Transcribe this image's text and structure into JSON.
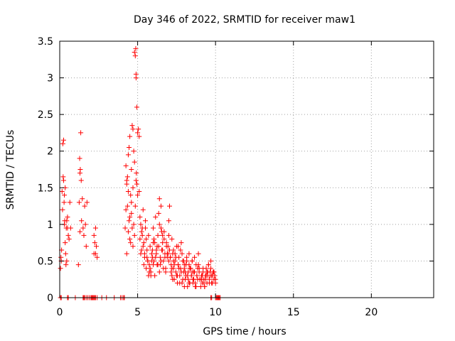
{
  "chart_data": {
    "type": "scatter",
    "title": "Day 346 of 2022, SRMTID for receiver maw1",
    "xlabel": "GPS time / hours",
    "ylabel": "SRMTID / TECUs",
    "xlim": [
      0,
      24
    ],
    "ylim": [
      0,
      3.5
    ],
    "grid": true,
    "marker": "plus",
    "color": "#ff0000",
    "xticks": [
      0,
      5,
      10,
      15,
      20
    ],
    "xtick_labels": [
      "0",
      "5",
      "10",
      "15",
      "20"
    ],
    "yticks": [
      0,
      0.5,
      1,
      1.5,
      2,
      2.5,
      3,
      3.5
    ],
    "ytick_labels": [
      "0",
      "0.5",
      "1",
      "1.5",
      "2",
      "2.5",
      "3",
      "3.5"
    ],
    "series": [
      {
        "name": "maw1",
        "x": [
          0.05,
          0.08,
          0.1,
          0.12,
          0.15,
          0.18,
          0.2,
          0.22,
          0.25,
          0.28,
          0.3,
          0.32,
          0.35,
          0.38,
          0.4,
          0.42,
          0.45,
          0.5,
          0.55,
          0.6,
          0.65,
          0.7,
          0.35,
          0.3,
          0.25,
          0.45,
          0.5,
          1.2,
          1.25,
          1.3,
          1.32,
          1.35,
          1.38,
          1.4,
          1.45,
          1.5,
          1.55,
          1.6,
          1.65,
          1.7,
          1.75,
          1.3,
          1.28,
          2.2,
          2.25,
          2.3,
          2.35,
          2.4,
          2.2,
          2.3,
          4.2,
          4.25,
          4.3,
          4.35,
          4.4,
          4.45,
          4.5,
          4.55,
          4.6,
          4.65,
          4.7,
          4.75,
          4.8,
          4.85,
          4.9,
          4.95,
          5.0,
          5.05,
          5.1,
          4.3,
          4.4,
          4.5,
          4.6,
          4.7,
          4.8,
          4.9,
          5.0,
          4.88,
          4.9,
          4.92,
          4.95,
          4.85,
          4.8,
          4.75,
          4.7,
          4.65,
          4.6,
          4.55,
          4.5,
          4.45,
          4.4,
          4.35,
          4.3,
          4.25,
          5.1,
          5.15,
          5.2,
          5.25,
          5.3,
          5.35,
          5.4,
          5.45,
          5.5,
          5.55,
          5.6,
          5.65,
          5.7,
          5.75,
          5.8,
          5.85,
          5.9,
          5.95,
          6.0,
          5.2,
          5.3,
          5.4,
          5.5,
          5.6,
          5.7,
          5.8,
          5.9,
          6.0,
          5.15,
          5.25,
          5.35,
          5.45,
          5.55,
          5.65,
          5.75,
          5.85,
          5.95,
          6.0,
          6.05,
          6.1,
          6.15,
          6.2,
          6.25,
          6.3,
          6.35,
          6.4,
          6.45,
          6.5,
          6.55,
          6.6,
          6.65,
          6.7,
          6.75,
          6.8,
          6.85,
          6.9,
          6.95,
          7.0,
          6.1,
          6.2,
          6.3,
          6.4,
          6.5,
          6.6,
          6.7,
          6.8,
          6.9,
          7.0,
          6.05,
          6.15,
          6.25,
          6.35,
          6.45,
          6.55,
          6.65,
          6.75,
          6.85,
          6.95,
          6.4,
          6.5,
          6.6,
          7.0,
          7.05,
          7.1,
          7.15,
          7.2,
          7.25,
          7.3,
          7.35,
          7.4,
          7.45,
          7.5,
          7.55,
          7.6,
          7.65,
          7.7,
          7.75,
          7.8,
          7.85,
          7.9,
          7.95,
          8.0,
          7.1,
          7.2,
          7.3,
          7.4,
          7.5,
          7.6,
          7.7,
          7.8,
          7.9,
          8.0,
          7.05,
          7.15,
          7.25,
          7.35,
          7.45,
          7.55,
          7.65,
          7.75,
          7.85,
          7.95,
          7.2,
          7.3,
          7.6,
          8.0,
          8.05,
          8.1,
          8.15,
          8.2,
          8.25,
          8.3,
          8.35,
          8.4,
          8.45,
          8.5,
          8.55,
          8.6,
          8.65,
          8.7,
          8.75,
          8.8,
          8.85,
          8.9,
          8.95,
          9.0,
          8.1,
          8.2,
          8.3,
          8.4,
          8.5,
          8.6,
          8.7,
          8.8,
          8.9,
          8.05,
          8.15,
          8.25,
          8.35,
          8.45,
          8.55,
          8.65,
          8.75,
          8.85,
          8.95,
          8.3,
          8.5,
          9.0,
          9.05,
          9.1,
          9.15,
          9.2,
          9.25,
          9.3,
          9.35,
          9.4,
          9.45,
          9.5,
          9.55,
          9.6,
          9.65,
          9.7,
          9.75,
          9.8,
          9.85,
          9.9,
          9.95,
          10.0,
          9.1,
          9.2,
          9.3,
          9.4,
          9.5,
          9.6,
          9.7,
          9.8,
          9.9,
          10.0,
          9.15,
          9.25,
          9.35,
          9.45,
          9.55,
          9.65,
          9.75,
          9.85,
          0.05,
          0.1,
          0.5,
          0.55,
          1.0,
          1.5,
          1.55,
          1.6,
          1.7,
          1.8,
          1.9,
          2.0,
          2.05,
          2.1,
          2.15,
          2.2,
          2.25,
          2.3,
          2.4,
          2.7,
          3.0,
          3.5,
          3.9,
          4.0,
          4.1,
          4.15,
          9.7,
          9.75,
          10.0,
          10.05,
          10.1,
          10.15,
          10.2,
          10.25,
          10.3
        ],
        "y": [
          0.4,
          0.55,
          0.5,
          0.65,
          1.45,
          1.2,
          2.1,
          1.65,
          1.6,
          1.3,
          1.0,
          1.05,
          0.75,
          0.6,
          0.45,
          0.95,
          0.5,
          1.1,
          0.85,
          0.8,
          1.3,
          0.95,
          1.5,
          1.4,
          2.15,
          1.05,
          0.95,
          0.45,
          1.3,
          0.9,
          1.75,
          2.25,
          1.6,
          1.05,
          1.35,
          0.95,
          0.85,
          1.25,
          1.0,
          0.7,
          1.3,
          1.7,
          1.9,
          0.6,
          0.75,
          0.95,
          0.7,
          0.55,
          0.85,
          0.6,
          0.95,
          1.2,
          1.55,
          1.65,
          1.95,
          2.05,
          2.2,
          1.4,
          1.75,
          2.35,
          2.3,
          2.0,
          3.35,
          3.3,
          3.05,
          2.6,
          2.25,
          2.3,
          2.2,
          0.6,
          0.9,
          1.1,
          1.3,
          1.5,
          1.85,
          1.6,
          1.4,
          3.4,
          3.0,
          1.7,
          1.55,
          1.25,
          0.85,
          1.0,
          0.7,
          0.95,
          1.15,
          0.75,
          0.8,
          1.05,
          1.45,
          1.25,
          1.6,
          1.8,
          1.45,
          0.8,
          0.6,
          0.65,
          0.95,
          1.2,
          0.75,
          0.55,
          1.05,
          0.4,
          0.65,
          0.5,
          0.85,
          0.35,
          0.7,
          0.3,
          0.5,
          0.65,
          0.75,
          1.0,
          0.85,
          0.45,
          0.95,
          0.55,
          0.3,
          0.4,
          0.6,
          0.45,
          1.1,
          0.9,
          0.7,
          0.6,
          0.8,
          0.5,
          0.45,
          0.35,
          0.55,
          0.95,
          0.5,
          0.75,
          1.1,
          0.6,
          0.45,
          0.85,
          0.7,
          1.35,
          0.55,
          1.25,
          0.9,
          0.65,
          0.5,
          0.8,
          0.6,
          0.4,
          0.75,
          0.55,
          0.7,
          0.85,
          0.3,
          0.65,
          0.45,
          1.0,
          0.5,
          0.75,
          0.9,
          0.35,
          0.6,
          0.5,
          0.8,
          0.55,
          0.7,
          1.15,
          0.45,
          0.65,
          0.4,
          0.55,
          0.7,
          0.6,
          0.35,
          0.95,
          0.85,
          1.05,
          1.25,
          0.55,
          0.45,
          0.3,
          0.6,
          0.4,
          0.25,
          0.5,
          0.35,
          0.7,
          0.2,
          0.45,
          0.55,
          0.3,
          0.4,
          0.75,
          0.6,
          0.25,
          0.35,
          0.45,
          0.55,
          0.4,
          0.5,
          0.6,
          0.3,
          0.45,
          0.2,
          0.35,
          0.5,
          0.15,
          0.65,
          0.35,
          0.25,
          0.45,
          0.55,
          0.3,
          0.4,
          0.65,
          0.2,
          0.5,
          0.8,
          0.65,
          0.7,
          0.4,
          0.25,
          0.3,
          0.5,
          0.15,
          0.35,
          0.45,
          0.2,
          0.4,
          0.3,
          0.5,
          0.25,
          0.35,
          0.55,
          0.2,
          0.45,
          0.3,
          0.4,
          0.6,
          0.35,
          0.25,
          0.45,
          0.3,
          0.2,
          0.4,
          0.35,
          0.25,
          0.15,
          0.3,
          0.45,
          0.35,
          0.55,
          0.25,
          0.4,
          0.3,
          0.2,
          0.35,
          0.15,
          0.25,
          0.4,
          0.6,
          0.5,
          0.25,
          0.15,
          0.3,
          0.2,
          0.35,
          0.25,
          0.15,
          0.3,
          0.4,
          0.2,
          0.3,
          0.45,
          0.25,
          0.35,
          0.5,
          0.3,
          0.2,
          0.35,
          0.25,
          0.3,
          0.2,
          0.25,
          0.4,
          0.15,
          0.3,
          0.35,
          0.2,
          0.4,
          0.3,
          0.35,
          0.25,
          0.3,
          0.2,
          0.25,
          0.35,
          0.45,
          0.3,
          0.2,
          0.35,
          0,
          0,
          0,
          0,
          0,
          0,
          0,
          0,
          0,
          0,
          0,
          0,
          0,
          0,
          0,
          0,
          0,
          0,
          0,
          0,
          0,
          0,
          0,
          0,
          0,
          0,
          0,
          0,
          0,
          0,
          0,
          0,
          0,
          0,
          0
        ]
      }
    ]
  }
}
